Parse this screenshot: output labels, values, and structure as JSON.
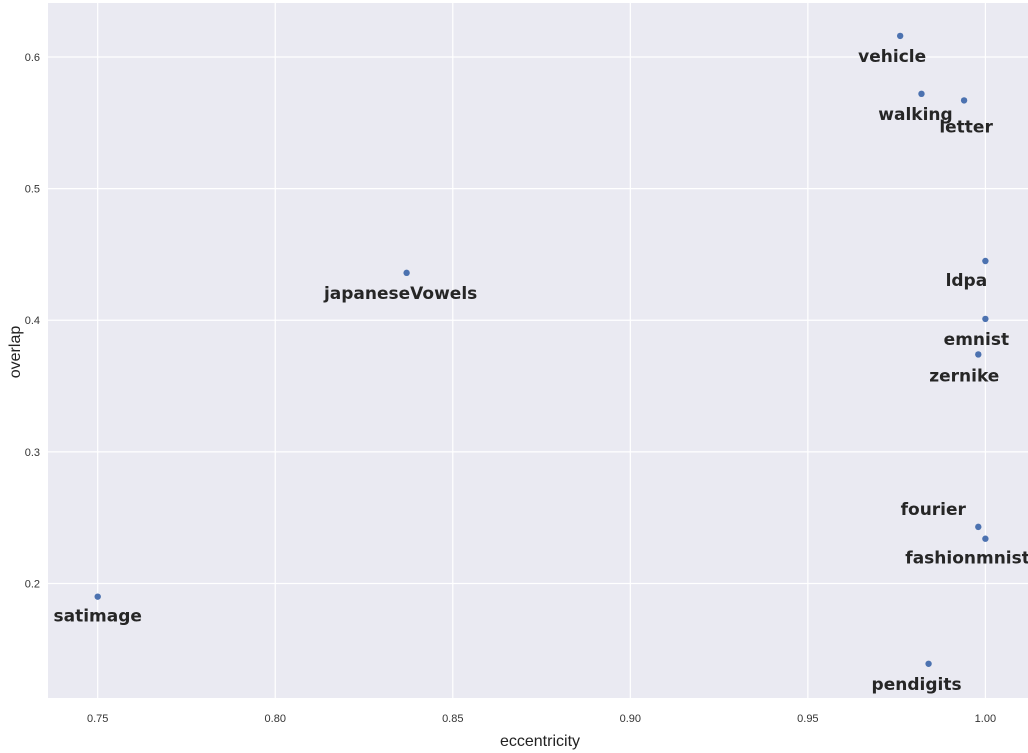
{
  "chart_data": {
    "type": "scatter",
    "xlabel": "eccentricity",
    "ylabel": "overlap",
    "xlim": [
      0.736,
      1.012
    ],
    "ylim": [
      0.113,
      0.641
    ],
    "x_ticks": [
      "0.75",
      "0.80",
      "0.85",
      "0.90",
      "0.95",
      "1.00"
    ],
    "y_ticks": [
      "0.2",
      "0.3",
      "0.4",
      "0.5",
      "0.6"
    ],
    "grid": true,
    "colors": {
      "background": "#eaeaf2",
      "grid": "#ffffff",
      "point": "#4c72b0"
    },
    "points": [
      {
        "label": "vehicle",
        "x": 0.976,
        "y": 0.616
      },
      {
        "label": "walking",
        "x": 0.982,
        "y": 0.572
      },
      {
        "label": "letter",
        "x": 0.994,
        "y": 0.567
      },
      {
        "label": "japaneseVowels",
        "x": 0.837,
        "y": 0.436
      },
      {
        "label": "ldpa",
        "x": 1.0,
        "y": 0.445
      },
      {
        "label": "emnist",
        "x": 1.0,
        "y": 0.401
      },
      {
        "label": "zernike",
        "x": 0.998,
        "y": 0.374
      },
      {
        "label": "fourier",
        "x": 0.998,
        "y": 0.243
      },
      {
        "label": "fashionmnist",
        "x": 1.0,
        "y": 0.234
      },
      {
        "label": "satimage",
        "x": 0.75,
        "y": 0.19
      },
      {
        "label": "pendigits",
        "x": 0.984,
        "y": 0.139
      }
    ]
  }
}
